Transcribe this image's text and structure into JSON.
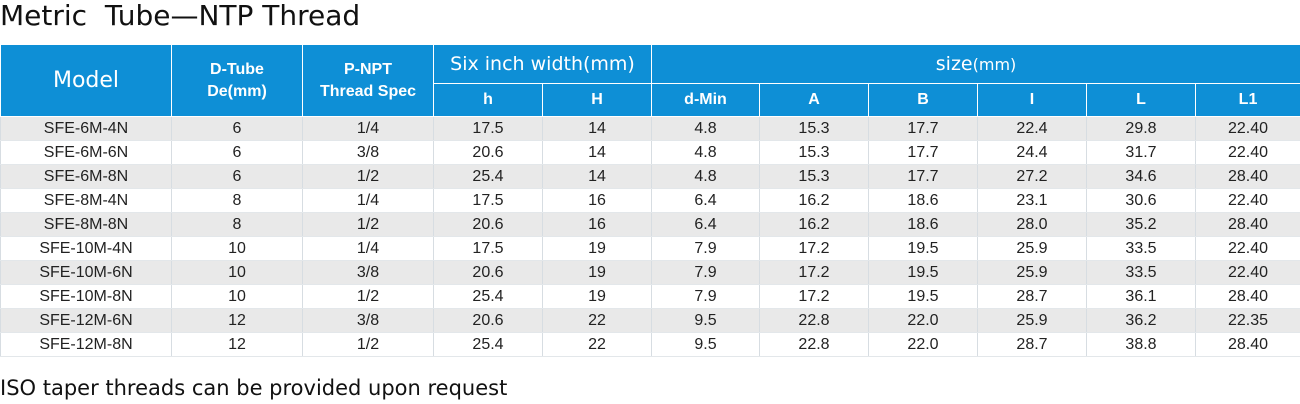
{
  "title": "Metric  Tube—NTP Thread",
  "header": {
    "model": "Model",
    "d_tube_line1": "D-Tube",
    "d_tube_line2": "De(mm)",
    "p_npt_line1": "P-NPT",
    "p_npt_line2": "Thread Spec",
    "six_inch": "Six inch width(mm)",
    "size": "size",
    "size_unit": "(mm)",
    "sub_columns": [
      "h",
      "H",
      "d-Min",
      "A",
      "B",
      "I",
      "L",
      "L1"
    ]
  },
  "rows": [
    [
      "SFE-6M-4N",
      "6",
      "1/4",
      "17.5",
      "14",
      "4.8",
      "15.3",
      "17.7",
      "22.4",
      "29.8",
      "22.40"
    ],
    [
      "SFE-6M-6N",
      "6",
      "3/8",
      "20.6",
      "14",
      "4.8",
      "15.3",
      "17.7",
      "24.4",
      "31.7",
      "22.40"
    ],
    [
      "SFE-6M-8N",
      "6",
      "1/2",
      "25.4",
      "14",
      "4.8",
      "15.3",
      "17.7",
      "27.2",
      "34.6",
      "28.40"
    ],
    [
      "SFE-8M-4N",
      "8",
      "1/4",
      "17.5",
      "16",
      "6.4",
      "16.2",
      "18.6",
      "23.1",
      "30.6",
      "22.40"
    ],
    [
      "SFE-8M-8N",
      "8",
      "1/2",
      "20.6",
      "16",
      "6.4",
      "16.2",
      "18.6",
      "28.0",
      "35.2",
      "28.40"
    ],
    [
      "SFE-10M-4N",
      "10",
      "1/4",
      "17.5",
      "19",
      "7.9",
      "17.2",
      "19.5",
      "25.9",
      "33.5",
      "22.40"
    ],
    [
      "SFE-10M-6N",
      "10",
      "3/8",
      "20.6",
      "19",
      "7.9",
      "17.2",
      "19.5",
      "25.9",
      "33.5",
      "22.40"
    ],
    [
      "SFE-10M-8N",
      "10",
      "1/2",
      "25.4",
      "19",
      "7.9",
      "17.2",
      "19.5",
      "28.7",
      "36.1",
      "28.40"
    ],
    [
      "SFE-12M-6N",
      "12",
      "3/8",
      "20.6",
      "22",
      "9.5",
      "22.8",
      "22.0",
      "25.9",
      "36.2",
      "22.35"
    ],
    [
      "SFE-12M-8N",
      "12",
      "1/2",
      "25.4",
      "22",
      "9.5",
      "22.8",
      "22.0",
      "28.7",
      "38.8",
      "28.40"
    ]
  ],
  "footnote": "ISO taper threads can be provided upon request",
  "colors": {
    "header_bg": "#0e8fd6",
    "stripe_bg": "#e9e9e9"
  }
}
